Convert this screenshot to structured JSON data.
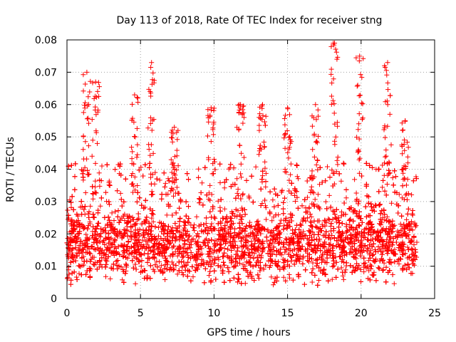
{
  "chart_data": {
    "type": "scatter",
    "title": "Day 113 of 2018, Rate Of TEC Index for receiver stng",
    "xlabel": "GPS time / hours",
    "ylabel": "ROTI / TECUs",
    "xlim": [
      0,
      25
    ],
    "ylim": [
      0,
      0.08
    ],
    "x_ticks": [
      0,
      5,
      10,
      15,
      20,
      25
    ],
    "x_tick_labels": [
      "0",
      "5",
      "10",
      "15",
      "20",
      "25"
    ],
    "y_ticks": [
      0,
      0.01,
      0.02,
      0.03,
      0.04,
      0.05,
      0.06,
      0.07,
      0.08
    ],
    "y_tick_labels": [
      "0",
      "0.01",
      "0.02",
      "0.03",
      "0.04",
      "0.05",
      "0.06",
      "0.07",
      "0.08"
    ],
    "grid": true,
    "marker": "+",
    "color": "#ff0000",
    "x_data_range": [
      0,
      23.8
    ],
    "typical_range": [
      0.005,
      0.035
    ],
    "series": [
      {
        "name": "ROTI",
        "peaks": [
          {
            "x": 1.35,
            "y": 0.07
          },
          {
            "x": 1.95,
            "y": 0.067
          },
          {
            "x": 4.6,
            "y": 0.063
          },
          {
            "x": 5.75,
            "y": 0.073
          },
          {
            "x": 7.3,
            "y": 0.053
          },
          {
            "x": 9.8,
            "y": 0.059
          },
          {
            "x": 11.8,
            "y": 0.06
          },
          {
            "x": 13.3,
            "y": 0.06
          },
          {
            "x": 15.0,
            "y": 0.059
          },
          {
            "x": 16.9,
            "y": 0.06
          },
          {
            "x": 18.2,
            "y": 0.079
          },
          {
            "x": 19.9,
            "y": 0.075
          },
          {
            "x": 21.8,
            "y": 0.073
          },
          {
            "x": 23.0,
            "y": 0.055
          }
        ]
      }
    ]
  }
}
